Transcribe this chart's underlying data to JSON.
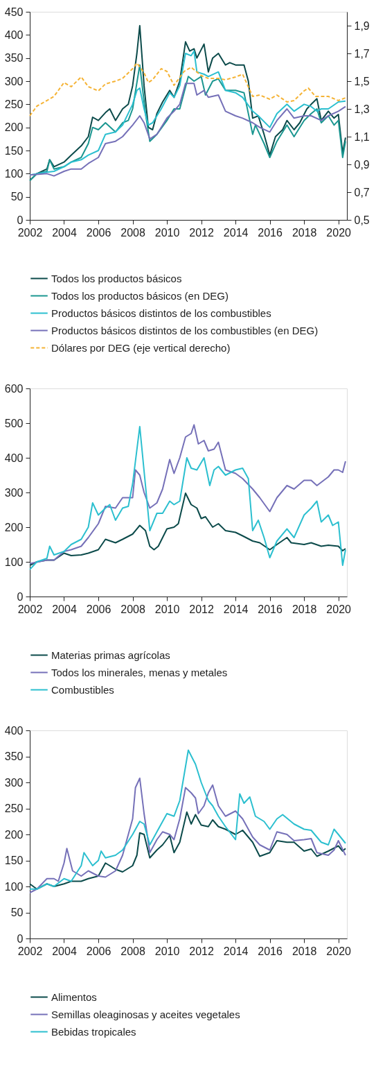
{
  "chart_data": [
    {
      "type": "line",
      "xlim": [
        "2002-01",
        "2020-07"
      ],
      "xticks": [
        "2002",
        "2004",
        "2006",
        "2008",
        "2010",
        "2012",
        "2014",
        "2016",
        "2018",
        "2020"
      ],
      "ylim": [
        0,
        450
      ],
      "yticks": [
        0,
        50,
        100,
        150,
        200,
        250,
        300,
        350,
        400,
        450
      ],
      "y2lim": [
        0.5,
        2.0
      ],
      "y2ticks": [
        {
          "value": 0.5,
          "label": "0,5"
        },
        {
          "value": 0.7,
          "label": "0,7"
        },
        {
          "value": 0.9,
          "label": "0,9"
        },
        {
          "value": 1.1,
          "label": "1,1"
        },
        {
          "value": 1.3,
          "label": "1,3"
        },
        {
          "value": 1.5,
          "label": "1,5"
        },
        {
          "value": 1.7,
          "label": "1,7"
        },
        {
          "value": 1.9,
          "label": "1,9"
        }
      ],
      "legend": "bottom",
      "grid": false,
      "series": [
        {
          "name": "Todos los productos básicos",
          "color": "#0b4a4a",
          "x": [
            "2002-01",
            "2002-06",
            "2003-01",
            "2003-03",
            "2003-06",
            "2004-01",
            "2004-06",
            "2005-01",
            "2005-06",
            "2005-09",
            "2006-01",
            "2006-06",
            "2006-09",
            "2007-01",
            "2007-06",
            "2007-10",
            "2008-01",
            "2008-04",
            "2008-06",
            "2008-09",
            "2008-12",
            "2009-03",
            "2009-06",
            "2009-10",
            "2010-03",
            "2010-06",
            "2010-10",
            "2011-02",
            "2011-05",
            "2011-08",
            "2011-10",
            "2012-03",
            "2012-06",
            "2012-09",
            "2013-01",
            "2013-06",
            "2013-09",
            "2014-01",
            "2014-07",
            "2014-10",
            "2015-01",
            "2015-05",
            "2015-09",
            "2016-01",
            "2016-05",
            "2016-10",
            "2017-01",
            "2017-06",
            "2017-10",
            "2018-03",
            "2018-06",
            "2018-10",
            "2019-01",
            "2019-06",
            "2019-10",
            "2020-01",
            "2020-04",
            "2020-06"
          ],
          "values": [
            85,
            100,
            110,
            130,
            115,
            125,
            140,
            160,
            180,
            222,
            215,
            232,
            240,
            215,
            240,
            250,
            290,
            360,
            420,
            290,
            200,
            195,
            230,
            255,
            280,
            265,
            300,
            385,
            365,
            370,
            350,
            380,
            320,
            350,
            360,
            335,
            340,
            335,
            335,
            300,
            220,
            225,
            185,
            140,
            180,
            195,
            215,
            195,
            210,
            240,
            250,
            262,
            215,
            235,
            220,
            228,
            145,
            178
          ]
        },
        {
          "name": "Todos los productos básicos (en DEG)",
          "color": "#1a9690",
          "x": [
            "2002-01",
            "2002-06",
            "2003-01",
            "2003-03",
            "2003-06",
            "2004-01",
            "2004-06",
            "2005-01",
            "2005-06",
            "2005-09",
            "2006-01",
            "2006-06",
            "2007-01",
            "2007-06",
            "2007-10",
            "2008-01",
            "2008-06",
            "2008-10",
            "2009-01",
            "2009-06",
            "2010-01",
            "2010-06",
            "2010-10",
            "2011-04",
            "2011-08",
            "2012-01",
            "2012-04",
            "2012-09",
            "2013-01",
            "2013-06",
            "2014-01",
            "2014-07",
            "2015-01",
            "2015-03",
            "2015-09",
            "2016-01",
            "2016-06",
            "2017-01",
            "2017-06",
            "2018-01",
            "2018-06",
            "2018-10",
            "2019-01",
            "2019-06",
            "2019-10",
            "2020-01",
            "2020-04",
            "2020-06"
          ],
          "values": [
            85,
            100,
            105,
            130,
            110,
            115,
            125,
            135,
            165,
            200,
            195,
            210,
            190,
            210,
            215,
            240,
            335,
            230,
            170,
            185,
            215,
            240,
            240,
            310,
            300,
            310,
            270,
            300,
            305,
            280,
            280,
            275,
            185,
            205,
            165,
            135,
            170,
            205,
            180,
            215,
            230,
            240,
            210,
            225,
            205,
            215,
            135,
            170
          ]
        },
        {
          "name": "Productos básicos distintos de los combustibles",
          "color": "#2bbfcf",
          "x": [
            "2002-01",
            "2003-01",
            "2003-06",
            "2004-01",
            "2004-06",
            "2005-01",
            "2005-06",
            "2006-01",
            "2006-06",
            "2007-01",
            "2007-06",
            "2008-01",
            "2008-04",
            "2008-06",
            "2008-09",
            "2008-12",
            "2009-03",
            "2009-09",
            "2010-03",
            "2010-06",
            "2010-10",
            "2011-02",
            "2011-06",
            "2011-08",
            "2011-10",
            "2012-03",
            "2012-06",
            "2013-01",
            "2013-06",
            "2014-01",
            "2014-06",
            "2015-01",
            "2015-05",
            "2016-01",
            "2016-06",
            "2017-01",
            "2017-06",
            "2018-01",
            "2018-06",
            "2018-10",
            "2019-01",
            "2019-06",
            "2020-01",
            "2020-06"
          ],
          "values": [
            97,
            103,
            105,
            115,
            125,
            130,
            140,
            150,
            185,
            190,
            205,
            250,
            280,
            285,
            240,
            205,
            210,
            240,
            275,
            265,
            290,
            360,
            355,
            365,
            320,
            315,
            310,
            320,
            280,
            275,
            265,
            235,
            225,
            200,
            230,
            250,
            235,
            250,
            245,
            235,
            240,
            240,
            255,
            257
          ]
        },
        {
          "name": "Productos básicos distintos de los combustibles (en DEG)",
          "color": "#7570b8",
          "x": [
            "2002-01",
            "2003-01",
            "2003-06",
            "2004-01",
            "2004-06",
            "2005-01",
            "2005-06",
            "2006-01",
            "2006-06",
            "2007-01",
            "2007-06",
            "2008-01",
            "2008-06",
            "2008-09",
            "2009-01",
            "2009-06",
            "2010-01",
            "2010-06",
            "2010-10",
            "2011-02",
            "2011-08",
            "2011-10",
            "2012-03",
            "2012-06",
            "2013-01",
            "2013-06",
            "2014-01",
            "2014-06",
            "2015-01",
            "2015-06",
            "2016-01",
            "2016-06",
            "2017-01",
            "2017-06",
            "2018-01",
            "2018-06",
            "2019-01",
            "2019-06",
            "2020-01",
            "2020-06"
          ],
          "values": [
            97,
            100,
            95,
            105,
            110,
            110,
            122,
            135,
            165,
            170,
            180,
            205,
            225,
            210,
            175,
            185,
            220,
            235,
            250,
            295,
            295,
            270,
            280,
            265,
            270,
            235,
            225,
            220,
            210,
            200,
            190,
            215,
            240,
            220,
            225,
            225,
            215,
            225,
            235,
            245
          ]
        },
        {
          "name": "Dólares por DEG (eje vertical derecho)",
          "color": "#f5b335",
          "axis": "y2",
          "line_style": "dashed",
          "x": [
            "2002-01",
            "2002-06",
            "2003-01",
            "2003-06",
            "2004-01",
            "2004-06",
            "2005-01",
            "2005-06",
            "2006-01",
            "2006-06",
            "2007-01",
            "2007-06",
            "2008-01",
            "2008-04",
            "2008-09",
            "2008-12",
            "2009-03",
            "2009-09",
            "2010-01",
            "2010-06",
            "2011-01",
            "2011-06",
            "2012-01",
            "2012-06",
            "2013-01",
            "2013-06",
            "2014-01",
            "2014-06",
            "2015-01",
            "2015-06",
            "2016-01",
            "2016-06",
            "2017-01",
            "2017-06",
            "2018-01",
            "2018-04",
            "2018-09",
            "2019-06",
            "2020-01",
            "2020-06"
          ],
          "values": [
            1.25,
            1.32,
            1.36,
            1.39,
            1.49,
            1.46,
            1.53,
            1.46,
            1.43,
            1.48,
            1.5,
            1.52,
            1.59,
            1.63,
            1.56,
            1.49,
            1.51,
            1.59,
            1.57,
            1.47,
            1.57,
            1.6,
            1.54,
            1.52,
            1.52,
            1.51,
            1.53,
            1.55,
            1.39,
            1.4,
            1.37,
            1.4,
            1.35,
            1.36,
            1.43,
            1.45,
            1.39,
            1.39,
            1.36,
            1.38
          ]
        }
      ]
    },
    {
      "type": "line",
      "xlim": [
        "2002-01",
        "2020-07"
      ],
      "xticks": [
        "2002",
        "2004",
        "2006",
        "2008",
        "2010",
        "2012",
        "2014",
        "2016",
        "2018",
        "2020"
      ],
      "ylim": [
        0,
        600
      ],
      "yticks": [
        0,
        100,
        200,
        300,
        400,
        500,
        600
      ],
      "legend": "bottom",
      "grid": false,
      "series": [
        {
          "name": "Materias primas agrícolas",
          "color": "#0b4a4a",
          "x": [
            "2002-01",
            "2002-06",
            "2003-01",
            "2003-06",
            "2004-01",
            "2004-06",
            "2005-01",
            "2005-06",
            "2006-01",
            "2006-06",
            "2007-01",
            "2007-06",
            "2008-01",
            "2008-06",
            "2008-10",
            "2009-01",
            "2009-04",
            "2009-07",
            "2010-01",
            "2010-06",
            "2010-09",
            "2011-02",
            "2011-06",
            "2011-10",
            "2012-01",
            "2012-04",
            "2012-09",
            "2013-01",
            "2013-06",
            "2014-01",
            "2014-06",
            "2015-01",
            "2015-06",
            "2016-01",
            "2016-06",
            "2017-01",
            "2017-04",
            "2018-01",
            "2018-06",
            "2019-01",
            "2019-06",
            "2020-01",
            "2020-04",
            "2020-06"
          ],
          "values": [
            90,
            100,
            105,
            105,
            125,
            118,
            120,
            125,
            135,
            165,
            155,
            165,
            180,
            205,
            190,
            145,
            135,
            145,
            195,
            200,
            210,
            298,
            265,
            255,
            225,
            230,
            200,
            210,
            190,
            185,
            175,
            160,
            155,
            135,
            150,
            170,
            155,
            150,
            155,
            145,
            148,
            145,
            132,
            138
          ]
        },
        {
          "name": "Todos los minerales, menas y metales",
          "color": "#7570b8",
          "x": [
            "2002-01",
            "2003-01",
            "2003-06",
            "2004-01",
            "2004-06",
            "2005-01",
            "2005-06",
            "2006-01",
            "2006-06",
            "2007-01",
            "2007-06",
            "2008-01",
            "2008-03",
            "2008-06",
            "2008-09",
            "2009-01",
            "2009-06",
            "2009-10",
            "2010-03",
            "2010-06",
            "2010-10",
            "2011-02",
            "2011-06",
            "2011-08",
            "2011-11",
            "2012-03",
            "2012-06",
            "2012-10",
            "2013-01",
            "2013-06",
            "2014-01",
            "2014-06",
            "2015-01",
            "2015-06",
            "2016-01",
            "2016-06",
            "2017-01",
            "2017-06",
            "2018-01",
            "2018-06",
            "2018-10",
            "2019-06",
            "2019-10",
            "2020-01",
            "2020-04",
            "2020-06"
          ],
          "values": [
            95,
            105,
            105,
            130,
            135,
            145,
            170,
            210,
            260,
            255,
            285,
            285,
            365,
            350,
            300,
            255,
            270,
            310,
            395,
            355,
            400,
            460,
            470,
            495,
            440,
            450,
            420,
            425,
            445,
            365,
            355,
            340,
            310,
            285,
            245,
            285,
            320,
            310,
            335,
            335,
            320,
            345,
            365,
            365,
            358,
            390
          ]
        },
        {
          "name": "Combustibles",
          "color": "#2bbfcf",
          "x": [
            "2002-01",
            "2002-06",
            "2003-01",
            "2003-03",
            "2003-06",
            "2004-01",
            "2004-06",
            "2005-01",
            "2005-06",
            "2005-09",
            "2006-01",
            "2006-06",
            "2006-09",
            "2007-01",
            "2007-06",
            "2007-10",
            "2008-01",
            "2008-06",
            "2008-10",
            "2009-01",
            "2009-06",
            "2009-10",
            "2010-03",
            "2010-06",
            "2010-10",
            "2011-03",
            "2011-06",
            "2011-10",
            "2012-03",
            "2012-07",
            "2012-10",
            "2013-01",
            "2013-06",
            "2014-01",
            "2014-06",
            "2014-10",
            "2015-01",
            "2015-05",
            "2015-09",
            "2016-01",
            "2016-06",
            "2017-01",
            "2017-06",
            "2018-01",
            "2018-06",
            "2018-10",
            "2019-01",
            "2019-06",
            "2019-09",
            "2020-01",
            "2020-04",
            "2020-06"
          ],
          "values": [
            78,
            100,
            110,
            145,
            120,
            130,
            150,
            165,
            200,
            270,
            235,
            255,
            265,
            220,
            255,
            260,
            325,
            490,
            320,
            190,
            240,
            240,
            275,
            265,
            275,
            400,
            370,
            365,
            400,
            320,
            365,
            375,
            350,
            365,
            370,
            340,
            190,
            220,
            170,
            112,
            160,
            195,
            170,
            235,
            255,
            275,
            215,
            235,
            205,
            215,
            90,
            135
          ]
        }
      ]
    },
    {
      "type": "line",
      "xlim": [
        "2002-01",
        "2020-07"
      ],
      "xticks": [
        "2002",
        "2004",
        "2006",
        "2008",
        "2010",
        "2012",
        "2014",
        "2016",
        "2018",
        "2020"
      ],
      "ylim": [
        0,
        400
      ],
      "yticks": [
        0,
        50,
        100,
        150,
        200,
        250,
        300,
        350,
        400
      ],
      "legend": "bottom",
      "grid": false,
      "series": [
        {
          "name": "Alimentos",
          "color": "#0b4a4a",
          "x": [
            "2002-01",
            "2002-06",
            "2003-01",
            "2003-06",
            "2004-01",
            "2004-06",
            "2005-01",
            "2005-06",
            "2006-01",
            "2006-06",
            "2006-09",
            "2007-01",
            "2007-06",
            "2008-01",
            "2008-04",
            "2008-06",
            "2008-09",
            "2009-01",
            "2009-06",
            "2009-10",
            "2010-03",
            "2010-06",
            "2010-10",
            "2011-03",
            "2011-06",
            "2011-09",
            "2012-01",
            "2012-06",
            "2012-09",
            "2013-01",
            "2013-06",
            "2014-01",
            "2014-06",
            "2015-01",
            "2015-06",
            "2016-01",
            "2016-06",
            "2017-01",
            "2017-06",
            "2018-01",
            "2018-06",
            "2018-10",
            "2019-06",
            "2020-01",
            "2020-04",
            "2020-06"
          ],
          "values": [
            105,
            95,
            105,
            100,
            105,
            110,
            110,
            115,
            120,
            145,
            140,
            133,
            128,
            140,
            160,
            203,
            200,
            155,
            170,
            180,
            198,
            165,
            185,
            243,
            220,
            238,
            218,
            215,
            228,
            215,
            210,
            200,
            208,
            185,
            158,
            165,
            188,
            185,
            185,
            168,
            172,
            158,
            168,
            178,
            168,
            173
          ]
        },
        {
          "name": "Semillas oleaginosas y aceites vegetales",
          "color": "#7570b8",
          "x": [
            "2002-01",
            "2002-06",
            "2003-01",
            "2003-06",
            "2003-09",
            "2004-01",
            "2004-03",
            "2004-07",
            "2005-01",
            "2005-06",
            "2006-01",
            "2006-06",
            "2007-01",
            "2007-06",
            "2008-01",
            "2008-03",
            "2008-06",
            "2008-09",
            "2009-01",
            "2009-06",
            "2009-10",
            "2010-03",
            "2010-06",
            "2010-10",
            "2011-02",
            "2011-06",
            "2011-09",
            "2011-11",
            "2012-03",
            "2012-06",
            "2012-09",
            "2013-01",
            "2013-06",
            "2014-01",
            "2014-06",
            "2015-01",
            "2015-06",
            "2016-01",
            "2016-06",
            "2017-01",
            "2017-06",
            "2018-01",
            "2018-06",
            "2018-10",
            "2019-06",
            "2019-10",
            "2020-01",
            "2020-06"
          ],
          "values": [
            88,
            95,
            115,
            115,
            110,
            145,
            173,
            130,
            120,
            130,
            120,
            118,
            130,
            160,
            230,
            290,
            308,
            240,
            165,
            190,
            205,
            200,
            190,
            230,
            290,
            280,
            270,
            240,
            255,
            280,
            295,
            255,
            235,
            245,
            230,
            195,
            180,
            170,
            205,
            200,
            188,
            190,
            192,
            165,
            160,
            170,
            188,
            160
          ]
        },
        {
          "name": "Bebidas tropicales",
          "color": "#2bbfcf",
          "x": [
            "2002-01",
            "2002-06",
            "2003-01",
            "2003-06",
            "2004-01",
            "2004-06",
            "2005-01",
            "2005-03",
            "2005-09",
            "2006-01",
            "2006-03",
            "2006-06",
            "2007-01",
            "2007-06",
            "2008-01",
            "2008-06",
            "2008-09",
            "2009-01",
            "2009-06",
            "2010-01",
            "2010-06",
            "2010-10",
            "2011-04",
            "2011-09",
            "2012-01",
            "2012-06",
            "2012-09",
            "2013-01",
            "2013-06",
            "2014-01",
            "2014-04",
            "2014-07",
            "2014-11",
            "2015-03",
            "2015-09",
            "2016-01",
            "2016-06",
            "2016-10",
            "2017-06",
            "2018-01",
            "2018-06",
            "2019-01",
            "2019-06",
            "2019-10",
            "2020-01",
            "2020-06"
          ],
          "values": [
            95,
            95,
            105,
            100,
            115,
            110,
            140,
            165,
            140,
            150,
            168,
            155,
            160,
            170,
            200,
            225,
            220,
            180,
            205,
            240,
            235,
            265,
            362,
            335,
            300,
            265,
            255,
            235,
            215,
            190,
            278,
            260,
            272,
            235,
            225,
            210,
            230,
            238,
            220,
            210,
            208,
            185,
            180,
            210,
            200,
            183
          ]
        }
      ]
    }
  ]
}
